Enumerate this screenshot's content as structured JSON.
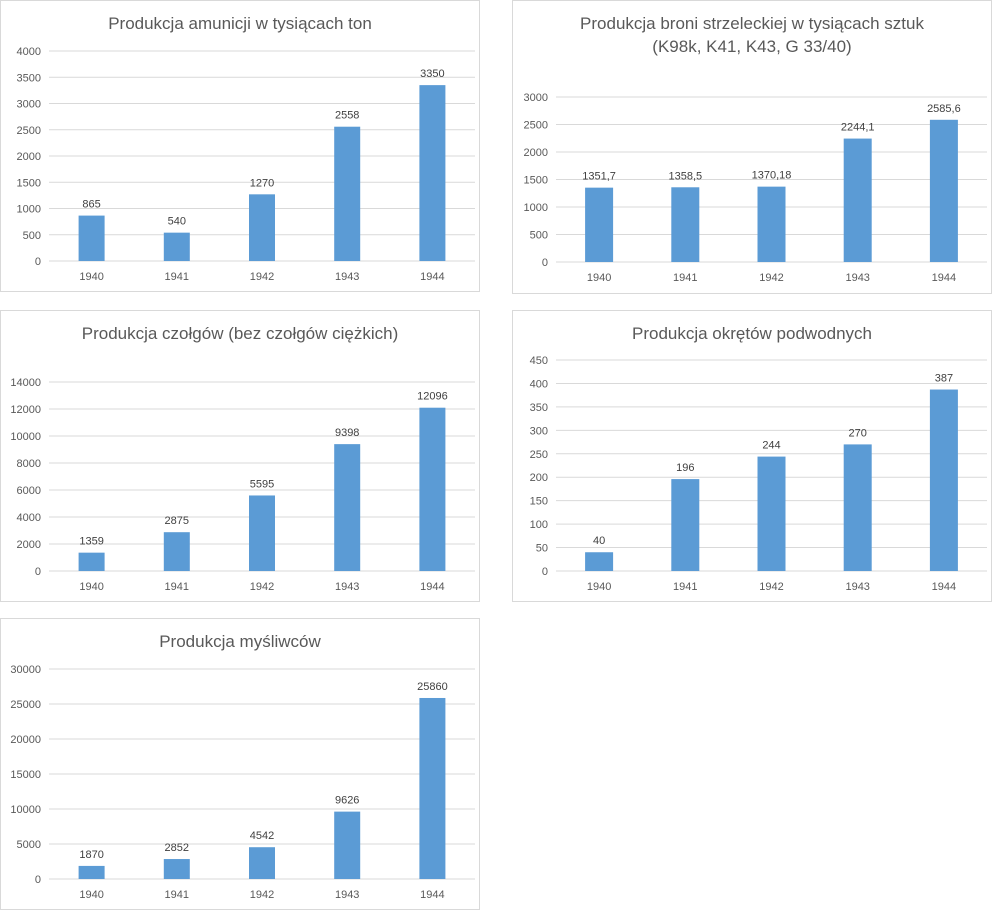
{
  "colors": {
    "bar": "#5b9bd5",
    "grid": "#d9d9d9",
    "text": "#595959"
  },
  "chart_data": [
    {
      "type": "bar",
      "title": "Produkcja amunicji w tysiącach ton",
      "categories": [
        "1940",
        "1941",
        "1942",
        "1943",
        "1944"
      ],
      "values": [
        865,
        540,
        1270,
        2558,
        3350
      ],
      "data_labels": [
        "865",
        "540",
        "1270",
        "2558",
        "3350"
      ],
      "yticks": [
        0,
        500,
        1000,
        1500,
        2000,
        2500,
        3000,
        3500,
        4000
      ],
      "ylim": [
        0,
        4000
      ],
      "grid": true,
      "legend": "none"
    },
    {
      "type": "bar",
      "title": "Produkcja broni strzeleckiej w tysiącach sztuk",
      "subtitle": "(K98k, K41, K43, G 33/40)",
      "categories": [
        "1940",
        "1941",
        "1942",
        "1943",
        "1944"
      ],
      "values": [
        1351.7,
        1358.5,
        1370.18,
        2244.1,
        2585.6
      ],
      "data_labels": [
        "1351,7",
        "1358,5",
        "1370,18",
        "2244,1",
        "2585,6"
      ],
      "yticks": [
        0,
        500,
        1000,
        1500,
        2000,
        2500,
        3000
      ],
      "ylim": [
        0,
        3000
      ],
      "grid": true,
      "legend": "none"
    },
    {
      "type": "bar",
      "title": "Produkcja czołgów (bez czołgów ciężkich)",
      "categories": [
        "1940",
        "1941",
        "1942",
        "1943",
        "1944"
      ],
      "values": [
        1359,
        2875,
        5595,
        9398,
        12096
      ],
      "data_labels": [
        "1359",
        "2875",
        "5595",
        "9398",
        "12096"
      ],
      "yticks": [
        0,
        2000,
        4000,
        6000,
        8000,
        10000,
        12000,
        14000
      ],
      "ylim": [
        0,
        14000
      ],
      "grid": true,
      "legend": "none"
    },
    {
      "type": "bar",
      "title": "Produkcja okrętów podwodnych",
      "categories": [
        "1940",
        "1941",
        "1942",
        "1943",
        "1944"
      ],
      "values": [
        40,
        196,
        244,
        270,
        387
      ],
      "data_labels": [
        "40",
        "196",
        "244",
        "270",
        "387"
      ],
      "yticks": [
        0,
        50,
        100,
        150,
        200,
        250,
        300,
        350,
        400,
        450
      ],
      "ylim": [
        0,
        450
      ],
      "grid": true,
      "legend": "none"
    },
    {
      "type": "bar",
      "title": "Produkcja myśliwców",
      "categories": [
        "1940",
        "1941",
        "1942",
        "1943",
        "1944"
      ],
      "values": [
        1870,
        2852,
        4542,
        9626,
        25860
      ],
      "data_labels": [
        "1870",
        "2852",
        "4542",
        "9626",
        "25860"
      ],
      "yticks": [
        0,
        5000,
        10000,
        15000,
        20000,
        25000,
        30000
      ],
      "ylim": [
        0,
        30000
      ],
      "grid": true,
      "legend": "none"
    }
  ]
}
